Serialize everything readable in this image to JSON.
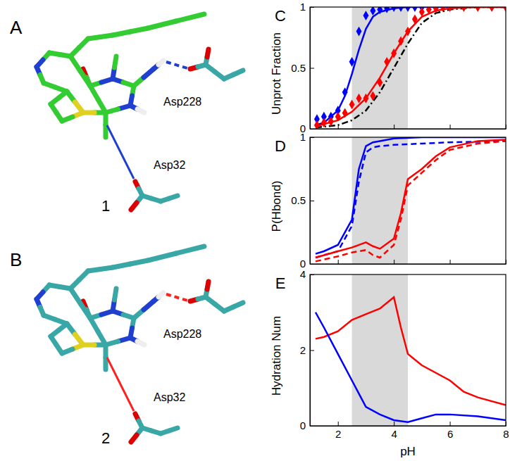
{
  "chart_data": [
    {
      "type": "line",
      "label": "C",
      "ylabel": "Unprot Fraction",
      "xlim": [
        1,
        8
      ],
      "xticks": [
        2,
        4,
        6,
        8
      ],
      "ylim": [
        0,
        1
      ],
      "yticks": [
        0,
        0.5,
        1
      ],
      "tick_labels": "y",
      "shaded_region": [
        2.5,
        4.5
      ],
      "series": [
        {
          "type": "line",
          "line_style": "dashdot",
          "color": "#000000",
          "x": [
            1.2,
            2,
            2.5,
            3,
            3.5,
            4,
            4.5,
            5,
            5.5,
            6,
            7,
            8
          ],
          "values": [
            0.01,
            0.03,
            0.07,
            0.15,
            0.3,
            0.5,
            0.7,
            0.87,
            0.95,
            0.98,
            1,
            1
          ]
        },
        {
          "type": "line",
          "line_style": "solid",
          "color": "#0000ff",
          "x": [
            1.2,
            1.5,
            2,
            2.25,
            2.5,
            2.75,
            3,
            3.25,
            3.5,
            4,
            4.5,
            5,
            6,
            8
          ],
          "values": [
            0.03,
            0.05,
            0.15,
            0.27,
            0.45,
            0.65,
            0.82,
            0.92,
            0.96,
            0.99,
            1,
            1,
            1,
            1
          ]
        },
        {
          "type": "line",
          "line_style": "solid",
          "color": "#ff0000",
          "x": [
            1.2,
            2,
            2.5,
            3,
            3.5,
            3.75,
            4,
            4.5,
            5,
            5.5,
            6,
            7,
            8
          ],
          "values": [
            0.02,
            0.07,
            0.14,
            0.25,
            0.42,
            0.52,
            0.62,
            0.8,
            0.92,
            0.97,
            0.99,
            1,
            1
          ]
        },
        {
          "type": "scatter",
          "marker": "diamond",
          "color": "#0000ff",
          "x": [
            1.25,
            1.5,
            1.75,
            2,
            2.25,
            2.5,
            2.75,
            3,
            3.25,
            3.5,
            3.75,
            4,
            4.25,
            4.5,
            4.75,
            5
          ],
          "values": [
            0.08,
            0.1,
            0.1,
            0.15,
            0.3,
            0.55,
            0.8,
            0.93,
            0.97,
            0.98,
            0.99,
            1,
            1,
            1,
            1,
            1
          ]
        },
        {
          "type": "scatter",
          "marker": "diamond",
          "color": "#ff0000",
          "x": [
            1.25,
            1.5,
            1.75,
            2,
            2.25,
            2.5,
            2.75,
            3,
            3.25,
            3.5,
            3.75,
            4,
            4.25,
            4.5,
            4.75,
            5,
            5.25,
            5.5,
            5.75,
            6,
            6.5,
            7,
            7.5,
            8
          ],
          "values": [
            0.03,
            0.05,
            0.06,
            0.1,
            0.13,
            0.2,
            0.25,
            0.25,
            0.27,
            0.38,
            0.55,
            0.62,
            0.72,
            0.8,
            0.9,
            0.96,
            0.98,
            0.99,
            1,
            1,
            1,
            1,
            1,
            1
          ]
        }
      ]
    },
    {
      "type": "line",
      "label": "D",
      "ylabel": "P(Hbond)",
      "xlim": [
        1,
        8
      ],
      "xticks": [
        2,
        4,
        6,
        8
      ],
      "ylim": [
        0,
        1
      ],
      "yticks": [
        0,
        0.5,
        1
      ],
      "tick_labels": "y",
      "shaded_region": [
        2.5,
        4.5
      ],
      "series": [
        {
          "type": "line",
          "line_style": "solid",
          "color": "#0000ff",
          "x": [
            1.2,
            1.5,
            2,
            2.5,
            2.75,
            3,
            3.25,
            3.5,
            4,
            5,
            8
          ],
          "values": [
            0.08,
            0.1,
            0.15,
            0.35,
            0.75,
            0.93,
            0.96,
            0.97,
            0.99,
            1,
            1
          ]
        },
        {
          "type": "line",
          "line_style": "dashed",
          "color": "#0000ff",
          "x": [
            1.2,
            1.5,
            2,
            2.5,
            2.75,
            3,
            3.25,
            3.5,
            4,
            5,
            6,
            8
          ],
          "values": [
            0.05,
            0.07,
            0.1,
            0.3,
            0.65,
            0.88,
            0.92,
            0.93,
            0.94,
            0.95,
            0.96,
            0.97
          ]
        },
        {
          "type": "line",
          "line_style": "solid",
          "color": "#ff0000",
          "x": [
            1.2,
            2,
            2.5,
            3,
            3.25,
            3.5,
            4,
            4.25,
            4.5,
            5,
            5.5,
            6,
            7,
            8
          ],
          "values": [
            0.05,
            0.1,
            0.13,
            0.17,
            0.14,
            0.12,
            0.2,
            0.4,
            0.67,
            0.75,
            0.85,
            0.92,
            0.97,
            0.98
          ]
        },
        {
          "type": "line",
          "line_style": "dashed",
          "color": "#ff0000",
          "x": [
            1.2,
            2,
            2.5,
            3,
            3.25,
            3.5,
            4,
            4.25,
            4.5,
            5,
            5.5,
            6,
            7,
            8
          ],
          "values": [
            0.02,
            0.06,
            0.09,
            0.11,
            0.07,
            0.05,
            0.15,
            0.35,
            0.62,
            0.72,
            0.82,
            0.9,
            0.95,
            0.97
          ]
        }
      ]
    },
    {
      "type": "line",
      "label": "E",
      "ylabel": "Hydration Num",
      "xlabel": "pH",
      "xlim": [
        1,
        8
      ],
      "xticks": [
        2,
        4,
        6,
        8
      ],
      "ylim": [
        0,
        4
      ],
      "yticks": [
        0,
        2,
        4
      ],
      "tick_labels": true,
      "shaded_region": [
        2.5,
        4.5
      ],
      "series": [
        {
          "type": "line",
          "line_style": "solid",
          "color": "#ff0000",
          "x": [
            1.2,
            1.5,
            2,
            2.5,
            3,
            3.5,
            4,
            4.25,
            4.5,
            5,
            5.5,
            6,
            6.5,
            7,
            8
          ],
          "values": [
            2.3,
            2.35,
            2.5,
            2.8,
            2.95,
            3.1,
            3.4,
            2.6,
            1.9,
            1.6,
            1.4,
            1.2,
            0.9,
            0.75,
            0.55
          ]
        },
        {
          "type": "line",
          "line_style": "solid",
          "color": "#0000ff",
          "x": [
            1.2,
            1.5,
            2,
            2.5,
            3,
            3.5,
            4,
            4.5,
            5,
            5.5,
            6,
            7,
            8
          ],
          "values": [
            3,
            2.6,
            1.9,
            1.2,
            0.5,
            0.3,
            0.15,
            0.1,
            0.2,
            0.3,
            0.3,
            0.25,
            0.15
          ]
        }
      ]
    }
  ],
  "structures": [
    {
      "label": "A",
      "compound": "1",
      "residues": [
        "Asp228",
        "Asp32"
      ]
    },
    {
      "label": "B",
      "compound": "2",
      "residues": [
        "Asp228",
        "Asp32"
      ]
    }
  ]
}
